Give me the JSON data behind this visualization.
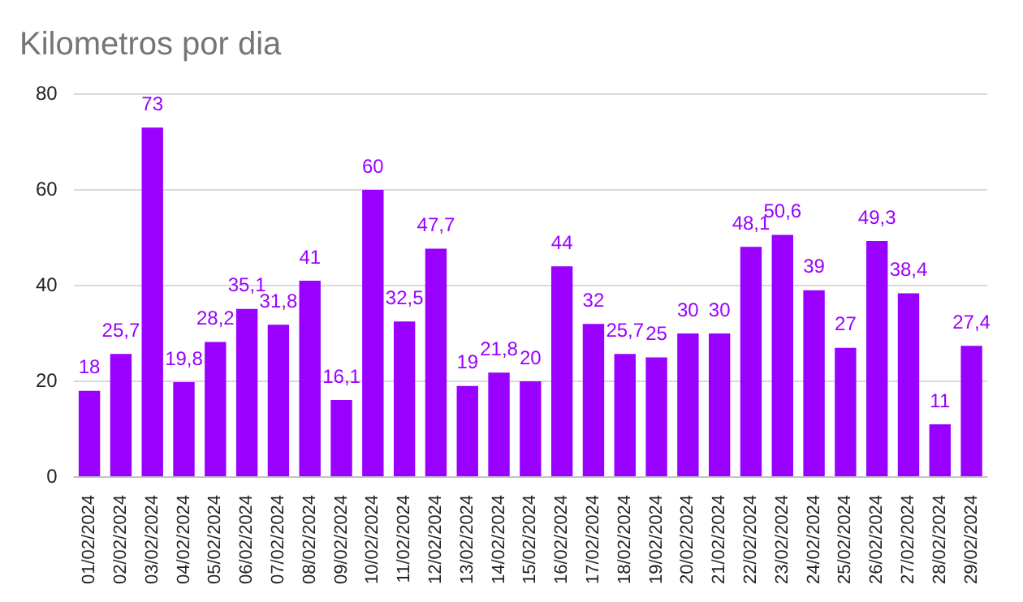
{
  "chart_data": {
    "type": "bar",
    "title": "Kilometros por dia",
    "categories": [
      "01/02/2024",
      "02/02/2024",
      "03/02/2024",
      "04/02/2024",
      "05/02/2024",
      "06/02/2024",
      "07/02/2024",
      "08/02/2024",
      "09/02/2024",
      "10/02/2024",
      "11/02/2024",
      "12/02/2024",
      "13/02/2024",
      "14/02/2024",
      "15/02/2024",
      "16/02/2024",
      "17/02/2024",
      "18/02/2024",
      "19/02/2024",
      "20/02/2024",
      "21/02/2024",
      "22/02/2024",
      "23/02/2024",
      "24/02/2024",
      "25/02/2024",
      "26/02/2024",
      "27/02/2024",
      "28/02/2024",
      "29/02/2024"
    ],
    "values": [
      18,
      25.7,
      73,
      19.8,
      28.2,
      35.1,
      31.8,
      41,
      16.1,
      60,
      32.5,
      47.7,
      19,
      21.8,
      20,
      44,
      32,
      25.7,
      25,
      30,
      30,
      48.1,
      50.6,
      39,
      27,
      49.3,
      38.4,
      11,
      27.4
    ],
    "value_labels": [
      "18",
      "25,7",
      "73",
      "19,8",
      "28,2",
      "35,1",
      "31,8",
      "41",
      "16,1",
      "60",
      "32,5",
      "47,7",
      "19",
      "21,8",
      "20",
      "44",
      "32",
      "25,7",
      "25",
      "30",
      "30",
      "48,1",
      "50,6",
      "39",
      "27",
      "49,3",
      "38,4",
      "11",
      "27,4"
    ],
    "color": "#9900ff",
    "ylim": [
      0,
      80
    ],
    "yticks": [
      0,
      20,
      40,
      60,
      80
    ],
    "grid": "y"
  }
}
